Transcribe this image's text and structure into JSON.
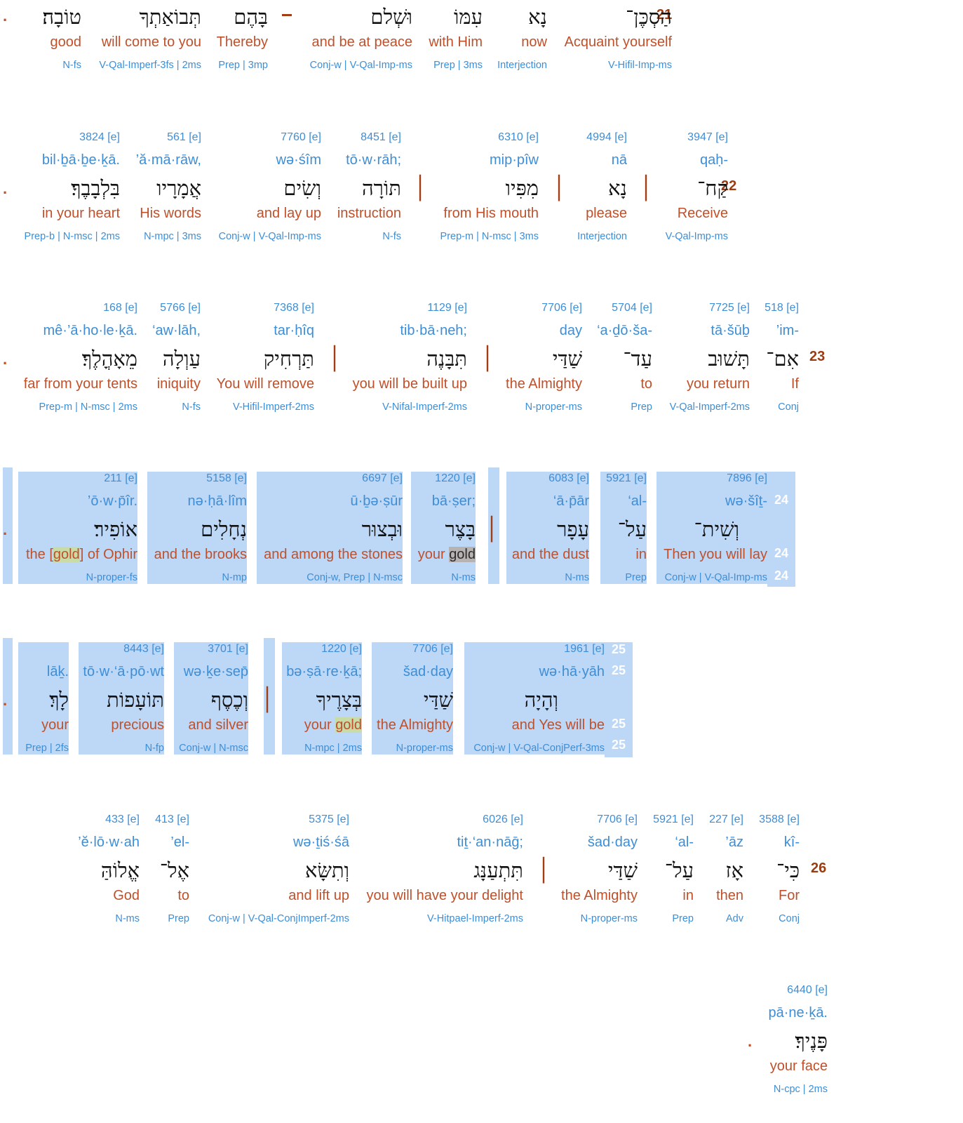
{
  "verses": [
    {
      "number": "21",
      "words": [
        {
          "num": "",
          "tr": "",
          "heb": "הַסְכֶּן־",
          "en": "Acquaint yourself",
          "mo": "V-Hifil-Imp-ms"
        },
        {
          "num": "",
          "tr": "",
          "heb": "נָא",
          "en": "now",
          "mo": "Interjection"
        },
        {
          "num": "",
          "tr": "",
          "heb": "עִמּוֹ",
          "en": "with Him",
          "mo": "Prep | 3ms"
        },
        {
          "num": "",
          "tr": "",
          "heb": "וּשְׁלם",
          "en": "and be at peace",
          "mo": "Conj-w | V-Qal-Imp-ms"
        },
        {
          "num": "",
          "tr": "",
          "heb": "בָּהֶם",
          "en": "Thereby",
          "mo": "Prep | 3mp"
        },
        {
          "num": "",
          "tr": "",
          "heb": "תְּבוֹאַתְךָ",
          "en": "will come to you",
          "mo": "V-Qal-Imperf-3fs | 2ms"
        },
        {
          "num": "",
          "tr": "",
          "heb": "טוֹבָה׃",
          "en": "good",
          "mo": "N-fs"
        }
      ]
    },
    {
      "number": "22",
      "words": [
        {
          "num": "3947 [e]",
          "tr": "qaḥ-",
          "heb": "קַח־",
          "en": "Receive",
          "mo": "V-Qal-Imp-ms"
        },
        {
          "num": "4994 [e]",
          "tr": "nā",
          "heb": "נָא",
          "en": "please",
          "mo": "Interjection"
        },
        {
          "num": "6310 [e]",
          "tr": "mip·pîw",
          "heb": "מִפִּיו",
          "en": "from His mouth",
          "mo": "Prep-m | N-msc | 3ms"
        },
        {
          "num": "8451 [e]",
          "tr": "tō·w·rāh;",
          "heb": "תּוֹרָה",
          "en": "instruction",
          "mo": "N-fs"
        },
        {
          "num": "7760 [e]",
          "tr": "wə·śîm",
          "heb": "וְשִׂים",
          "en": "and lay up",
          "mo": "Conj-w | V-Qal-Imp-ms"
        },
        {
          "num": "561 [e]",
          "tr": "’ă·mā·rāw,",
          "heb": "אֲמָרָיו",
          "en": "His words",
          "mo": "N-mpc | 3ms"
        },
        {
          "num": "3824 [e]",
          "tr": "bil·ḇā·ḇe·ḵā.",
          "heb": "בִּלְבָבֶךָ׃",
          "en": "in your heart",
          "mo": "Prep-b | N-msc | 2ms"
        }
      ]
    },
    {
      "number": "23",
      "words": [
        {
          "num": "518 [e]",
          "tr": "’im-",
          "heb": "אִם־",
          "en": "If",
          "mo": "Conj"
        },
        {
          "num": "7725 [e]",
          "tr": "tā·šūḇ",
          "heb": "תָּשׁוּב",
          "en": "you return",
          "mo": "V-Qal-Imperf-2ms"
        },
        {
          "num": "5704 [e]",
          "tr": "‘a·ḏō·ša-",
          "heb": "עַד־",
          "en": "to",
          "mo": "Prep"
        },
        {
          "num": "7706 [e]",
          "tr": "day",
          "heb": "שַׁדַּי",
          "en": "the Almighty",
          "mo": "N-proper-ms"
        },
        {
          "num": "1129 [e]",
          "tr": "tib·bā·neh;",
          "heb": "תִּבָּנֶה",
          "en": "you will be built up",
          "mo": "V-Nifal-Imperf-2ms"
        },
        {
          "num": "7368 [e]",
          "tr": "tar·ḥîq",
          "heb": "תַּרְחִיק",
          "en": "You will remove",
          "mo": "V-Hifil-Imperf-2ms"
        },
        {
          "num": "5766 [e]",
          "tr": "‘aw·lāh,",
          "heb": "עַוְלָה",
          "en": "iniquity",
          "mo": "N-fs"
        },
        {
          "num": "168 [e]",
          "tr": "mê·’ā·ho·le·ḵā.",
          "heb": "מֵאָהֳלֶךָ׃",
          "en": "far from your tents",
          "mo": "Prep-m | N-msc | 2ms"
        }
      ]
    },
    {
      "number": "24",
      "words": [
        {
          "num": "7896 [e]",
          "tr": "wə·šîṯ-",
          "heb": "וְשִׁית־",
          "en": "Then you will lay",
          "mo": "Conj-w | V-Qal-Imp-ms"
        },
        {
          "num": "5921 [e]",
          "tr": "‘al-",
          "heb": "עַל־",
          "en": "in",
          "mo": "Prep"
        },
        {
          "num": "6083 [e]",
          "tr": "‘ā·p̄ār",
          "heb": "עָפָר",
          "en": "and the dust",
          "mo": "N-ms"
        },
        {
          "num": "1220 [e]",
          "tr": "bā·ṣer;",
          "heb": "בָּצֶר",
          "en_a": "your ",
          "en_b": "gold",
          "mo": "N-ms"
        },
        {
          "num": "6697 [e]",
          "tr": "ū·ḇə·ṣūr",
          "heb": "וּבְצוּר",
          "en": "and among the stones",
          "mo": "Conj-w, Prep | N-msc"
        },
        {
          "num": "5158 [e]",
          "tr": "nə·ḥā·lîm",
          "heb": "נְחָלִים",
          "en": "and the brooks",
          "mo": "N-mp"
        },
        {
          "num": "211 [e]",
          "tr": "’ō·w·p̄îr.",
          "heb": "אוֹפִיר׃",
          "en_a": "the [",
          "en_b": "gold",
          "en_c": "] of Ophir",
          "mo": "N-proper-fs"
        }
      ]
    },
    {
      "number": "25",
      "words": [
        {
          "num": "1961 [e]",
          "tr": "wə·hā·yāh",
          "heb": "וְהָיָה",
          "en": "and Yes will be",
          "mo": "Conj-w | V-Qal-ConjPerf-3ms"
        },
        {
          "num": "7706 [e]",
          "tr": "šad·day",
          "heb": "שַׁדַּי",
          "en": "the Almighty",
          "mo": "N-proper-ms"
        },
        {
          "num": "1220 [e]",
          "tr": "bə·ṣā·re·ḵā;",
          "heb": "בְּצָרֶיךָ",
          "en_a": "your ",
          "en_b": "gold",
          "mo": "N-mpc | 2ms"
        },
        {
          "num": "3701 [e]",
          "tr": "wə·ḵe·sep̄",
          "heb": "וְכֶסֶף",
          "en": "and silver",
          "mo": "Conj-w | N-msc"
        },
        {
          "num": "8443 [e]",
          "tr": "tō·w·‘ā·pō·wt",
          "heb": "תּוֹעָפוֹת",
          "en": "precious",
          "mo": "N-fp"
        },
        {
          "num": "",
          "tr": "lāḵ.",
          "heb": "לָךְ׃",
          "en": "your",
          "mo": "Prep | 2fs"
        }
      ]
    },
    {
      "number": "26",
      "words": [
        {
          "num": "3588 [e]",
          "tr": "kî-",
          "heb": "כִּי־",
          "en": "For",
          "mo": "Conj"
        },
        {
          "num": "227 [e]",
          "tr": "’āz",
          "heb": "אָז",
          "en": "then",
          "mo": "Adv"
        },
        {
          "num": "5921 [e]",
          "tr": "‘al-",
          "heb": "עַל־",
          "en": "in",
          "mo": "Prep"
        },
        {
          "num": "7706 [e]",
          "tr": "šad·day",
          "heb": "שַׁדַּי",
          "en": "the Almighty",
          "mo": "N-proper-ms"
        },
        {
          "num": "6026 [e]",
          "tr": "tiṯ·‘an·nāḡ;",
          "heb": "תִּתְעַנָּג",
          "en": "you will have your delight",
          "mo": "V-Hitpael-Imperf-2ms"
        },
        {
          "num": "5375 [e]",
          "tr": "wə·ṯiś·śā",
          "heb": "וְתִשָּׂא",
          "en": "and lift up",
          "mo": "Conj-w | V-Qal-ConjImperf-2ms"
        },
        {
          "num": "413 [e]",
          "tr": "’el-",
          "heb": "אֶל־",
          "en": "to",
          "mo": "Prep"
        },
        {
          "num": "433 [e]",
          "tr": "’ĕ·lō·w·ah",
          "heb": "אֱלוֹהַּ",
          "en": "God",
          "mo": "N-ms"
        }
      ]
    },
    {
      "number": "",
      "words": [
        {
          "num": "6440 [e]",
          "tr": "pā·ne·ḵā.",
          "heb": "פָּנֶיךָ׃",
          "en": "your face",
          "mo": "N-cpc | 2ms"
        }
      ]
    }
  ],
  "punct": {
    "maqqef": "׀",
    "end": ".",
    "dash": "–"
  },
  "colors": {
    "hebrew": "#111111",
    "english": "#c0502a",
    "blue": "#3d8ed6",
    "verse_num": "#9b3b12",
    "selection": "#bdd7f7"
  }
}
